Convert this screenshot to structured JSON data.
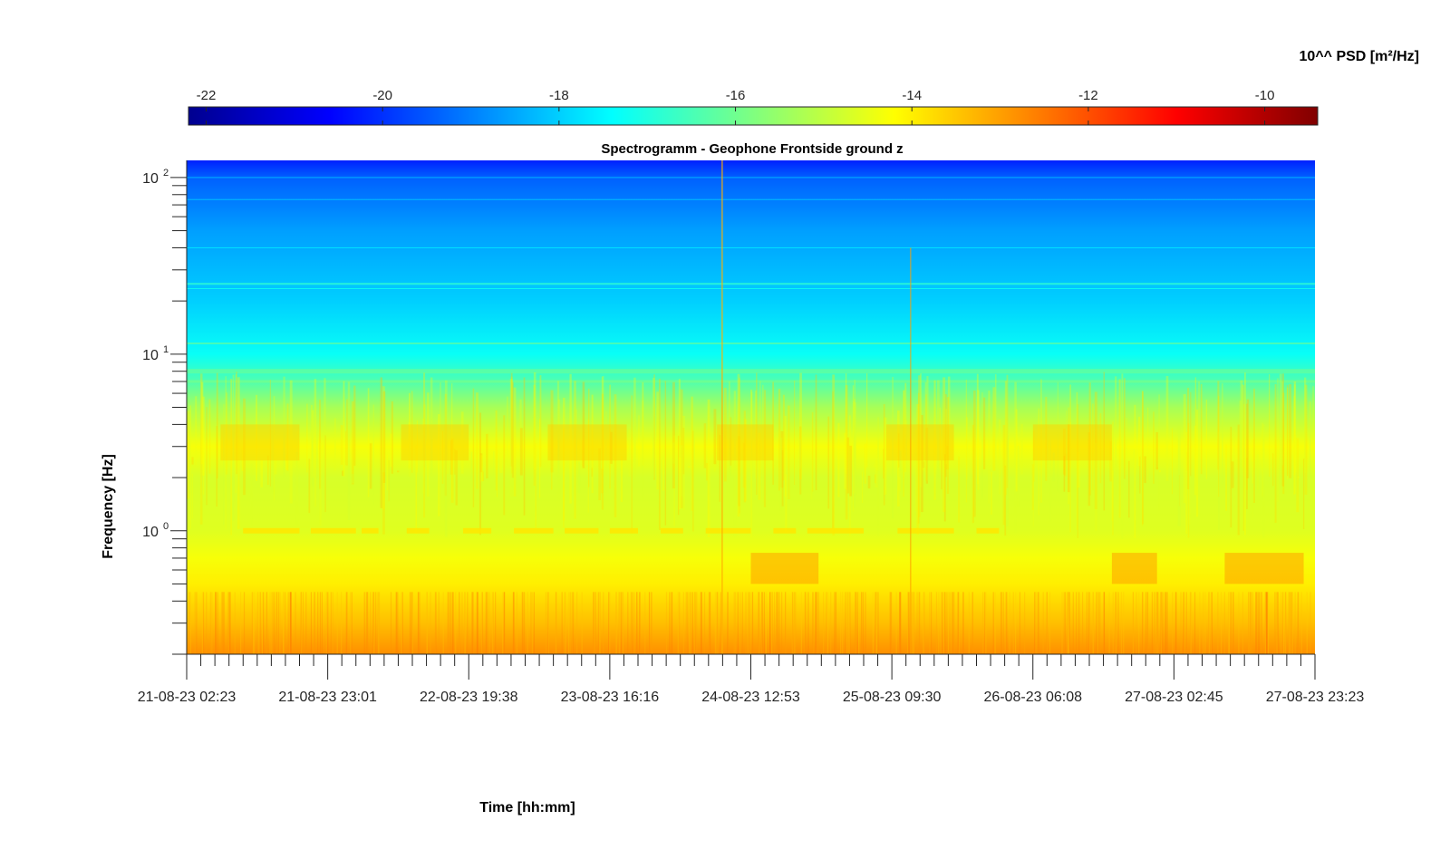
{
  "chart_data": {
    "type": "heatmap",
    "title": "Spectrogramm - Geophone Frontside ground z",
    "xlabel": "Time [hh:mm]",
    "ylabel": "Frequency [Hz]",
    "yscale": "log",
    "ylim": [
      0.2,
      125
    ],
    "y_ticks": [
      {
        "value": 1,
        "base": "10",
        "exp": "0"
      },
      {
        "value": 10,
        "base": "10",
        "exp": "1"
      },
      {
        "value": 100,
        "base": "10",
        "exp": "2"
      }
    ],
    "x_tick_labels": [
      "21-08-23 02:23",
      "21-08-23 23:01",
      "22-08-23 19:38",
      "23-08-23 16:16",
      "24-08-23 12:53",
      "25-08-23 09:30",
      "26-08-23 06:08",
      "27-08-23 02:45",
      "27-08-23 23:23"
    ],
    "colorbar": {
      "label": "10^^ PSD [m²/Hz]",
      "placement": "top",
      "colormap": "jet",
      "range": [
        -22.2,
        -9.4
      ],
      "ticks": [
        -22,
        -20,
        -18,
        -16,
        -14,
        -12,
        -10
      ]
    },
    "grid": false,
    "spectral_profile": [
      {
        "freq": 0.2,
        "log_psd": -12.8
      },
      {
        "freq": 0.3,
        "log_psd": -13.4
      },
      {
        "freq": 0.5,
        "log_psd": -14.0
      },
      {
        "freq": 0.7,
        "log_psd": -14.3
      },
      {
        "freq": 1.0,
        "log_psd": -14.6
      },
      {
        "freq": 2.0,
        "log_psd": -14.7
      },
      {
        "freq": 3.0,
        "log_psd": -14.3
      },
      {
        "freq": 5.0,
        "log_psd": -15.3
      },
      {
        "freq": 7.0,
        "log_psd": -16.4
      },
      {
        "freq": 10.0,
        "log_psd": -17.3
      },
      {
        "freq": 20.0,
        "log_psd": -18.0
      },
      {
        "freq": 50.0,
        "log_psd": -18.6
      },
      {
        "freq": 100.0,
        "log_psd": -19.4
      },
      {
        "freq": 125.0,
        "log_psd": -20.2
      }
    ]
  }
}
